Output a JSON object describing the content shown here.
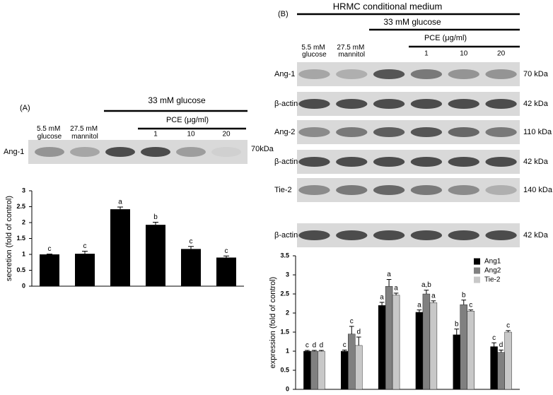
{
  "chart_data": [
    {
      "type": "bar",
      "panel": "(A)",
      "medium": null,
      "glucose": "33 mM glucose",
      "pce": "PCE (μg/ml)",
      "blot_rows": [
        {
          "protein": "Ang-1",
          "size": "70kDa"
        }
      ],
      "categories": [
        "5.5 mM glucose",
        "27.5 mM mannitol",
        null,
        "1",
        "10",
        "20"
      ],
      "ylabel": "secretion (fold of control)",
      "series": [
        {
          "color": "#000000",
          "values": [
            1.0,
            1.02,
            2.42,
            1.93,
            1.17,
            0.9
          ],
          "errors": [
            0.01,
            0.08,
            0.07,
            0.08,
            0.08,
            0.05
          ],
          "letters": [
            "c",
            "c",
            "a",
            "b",
            "c",
            "c"
          ]
        }
      ],
      "ylim": [
        0,
        3
      ],
      "yticks": [
        0,
        0.5,
        1,
        1.5,
        2,
        2.5,
        3
      ]
    },
    {
      "type": "bar",
      "panel": "(B)",
      "medium": "HRMC conditional medium",
      "glucose": "33 mM glucose",
      "pce": "PCE (μg/ml)",
      "blot_rows": [
        {
          "protein": "Ang-1",
          "size": "70 kDa"
        },
        {
          "protein": "β-actin",
          "size": "42 kDa"
        },
        {
          "protein": "Ang-2",
          "size": "110 kDa"
        },
        {
          "protein": "β-actin",
          "size": "42 kDa"
        },
        {
          "protein": "Tie-2",
          "size": "140 kDa"
        },
        {
          "protein": "β-actin",
          "size": "42 kDa"
        }
      ],
      "categories": [
        "5.5 mM glucose",
        "27.5 mM mannitol",
        null,
        "1",
        "10",
        "20"
      ],
      "ylabel": "expression (fold of control)",
      "series": [
        {
          "name": "Ang1",
          "color": "#000000",
          "values": [
            1.0,
            1.0,
            2.2,
            2.02,
            1.43,
            1.12
          ],
          "errors": [
            0.02,
            0.03,
            0.08,
            0.06,
            0.15,
            0.1
          ],
          "letters": [
            "c",
            "c",
            "a",
            "a",
            "b",
            "c"
          ]
        },
        {
          "name": "Ang2",
          "color": "#808080",
          "values": [
            1.0,
            1.45,
            2.7,
            2.5,
            2.22,
            0.97
          ],
          "errors": [
            0.02,
            0.2,
            0.18,
            0.1,
            0.12,
            0.06
          ],
          "letters": [
            "d",
            "c",
            "a",
            "a,b",
            "b",
            "d"
          ]
        },
        {
          "name": "Tie-2",
          "color": "#c8c8c8",
          "values": [
            1.0,
            1.15,
            2.47,
            2.27,
            2.05,
            1.5
          ],
          "errors": [
            0.02,
            0.22,
            0.05,
            0.05,
            0.03,
            0.04
          ],
          "letters": [
            "d",
            "d",
            "a",
            "a",
            "c",
            "c"
          ]
        }
      ],
      "legend": "top-right",
      "ylim": [
        0,
        3.5
      ],
      "yticks": [
        0,
        0.5,
        1,
        1.5,
        2,
        2.5,
        3,
        3.5
      ]
    }
  ]
}
